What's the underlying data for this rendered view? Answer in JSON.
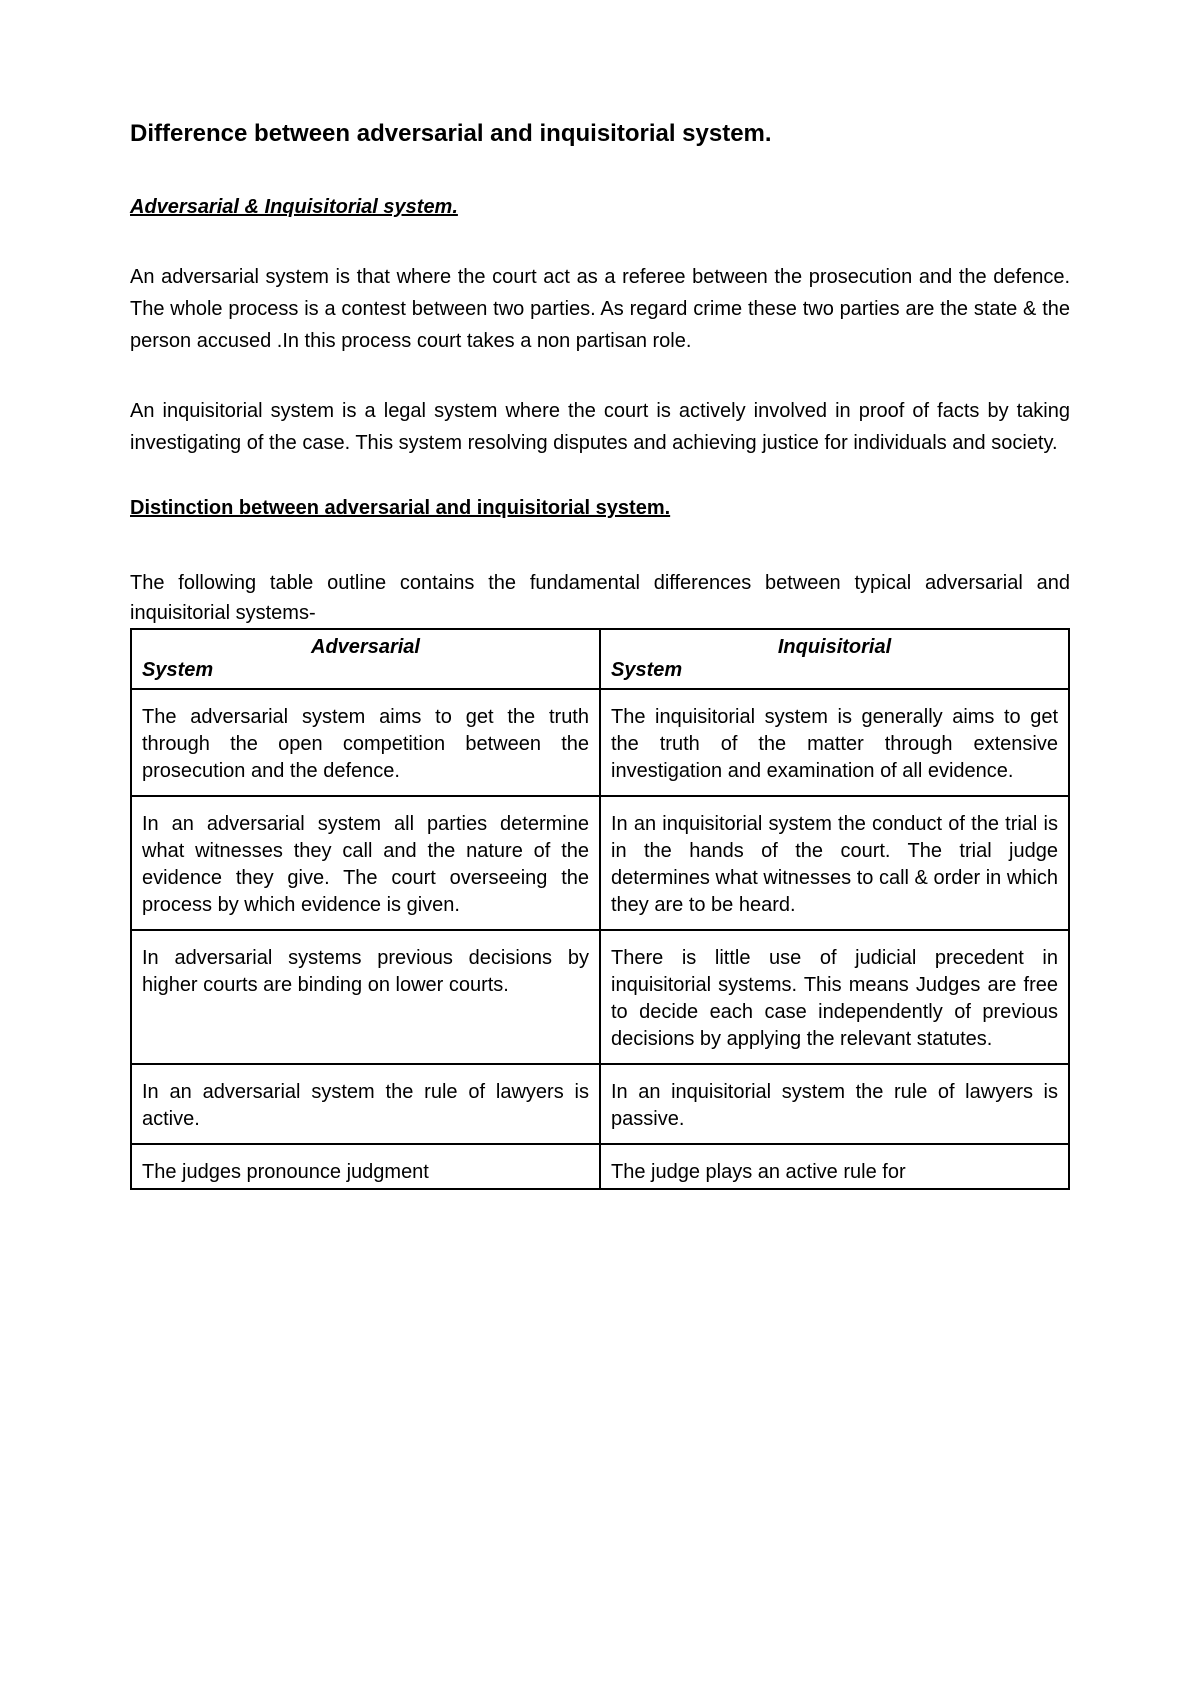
{
  "title": "Difference between adversarial and inquisitorial system.",
  "section_heading": "Adversarial & Inquisitorial system.",
  "paragraph1": "An adversarial system is that where the court act as a referee between the prosecution and the defence. The whole process is a contest between two parties. As regard crime these two parties are the state & the person accused .In this process court takes a non partisan role.",
  "paragraph2": "An inquisitorial system is a legal system where the court is actively involved in proof of facts by taking investigating of the case. This system resolving disputes and achieving justice for individuals and society.",
  "sub_heading": "Distinction between adversarial and inquisitorial system.",
  "intro_para": "The following table outline contains the fundamental differences between typical adversarial and inquisitorial systems-",
  "table": {
    "header_left_top": "Adversarial",
    "header_left_bottom": "System",
    "header_right_top": "Inquisitorial",
    "header_right_bottom": "System",
    "rows": [
      {
        "left": "The adversarial system aims to get the truth through the open competition between the prosecution and the defence.",
        "right": "The inquisitorial system is generally aims to get the truth of the matter through extensive investigation and examination of all evidence."
      },
      {
        "left": "In an adversarial system all parties determine what witnesses they call and the nature of the evidence they give. The court overseeing the process by which evidence is given.",
        "right": "In an inquisitorial system the conduct of the trial is in the hands of the court. The trial judge determines what witnesses to call & order in which they are to be heard."
      },
      {
        "left": "In adversarial systems previous decisions by higher courts are binding on lower courts.",
        "right": "There is little use of judicial precedent in inquisitorial systems. This means Judges are free to decide each case independently of previous decisions by applying the relevant statutes."
      },
      {
        "left": "In an adversarial system the rule of lawyers is active.",
        "right": "In an inquisitorial system the rule of lawyers is passive."
      },
      {
        "left": "The judges pronounce judgment",
        "right": "The judge plays an active rule for"
      }
    ]
  },
  "colors": {
    "text": "#000000",
    "background": "#ffffff",
    "border": "#000000"
  }
}
